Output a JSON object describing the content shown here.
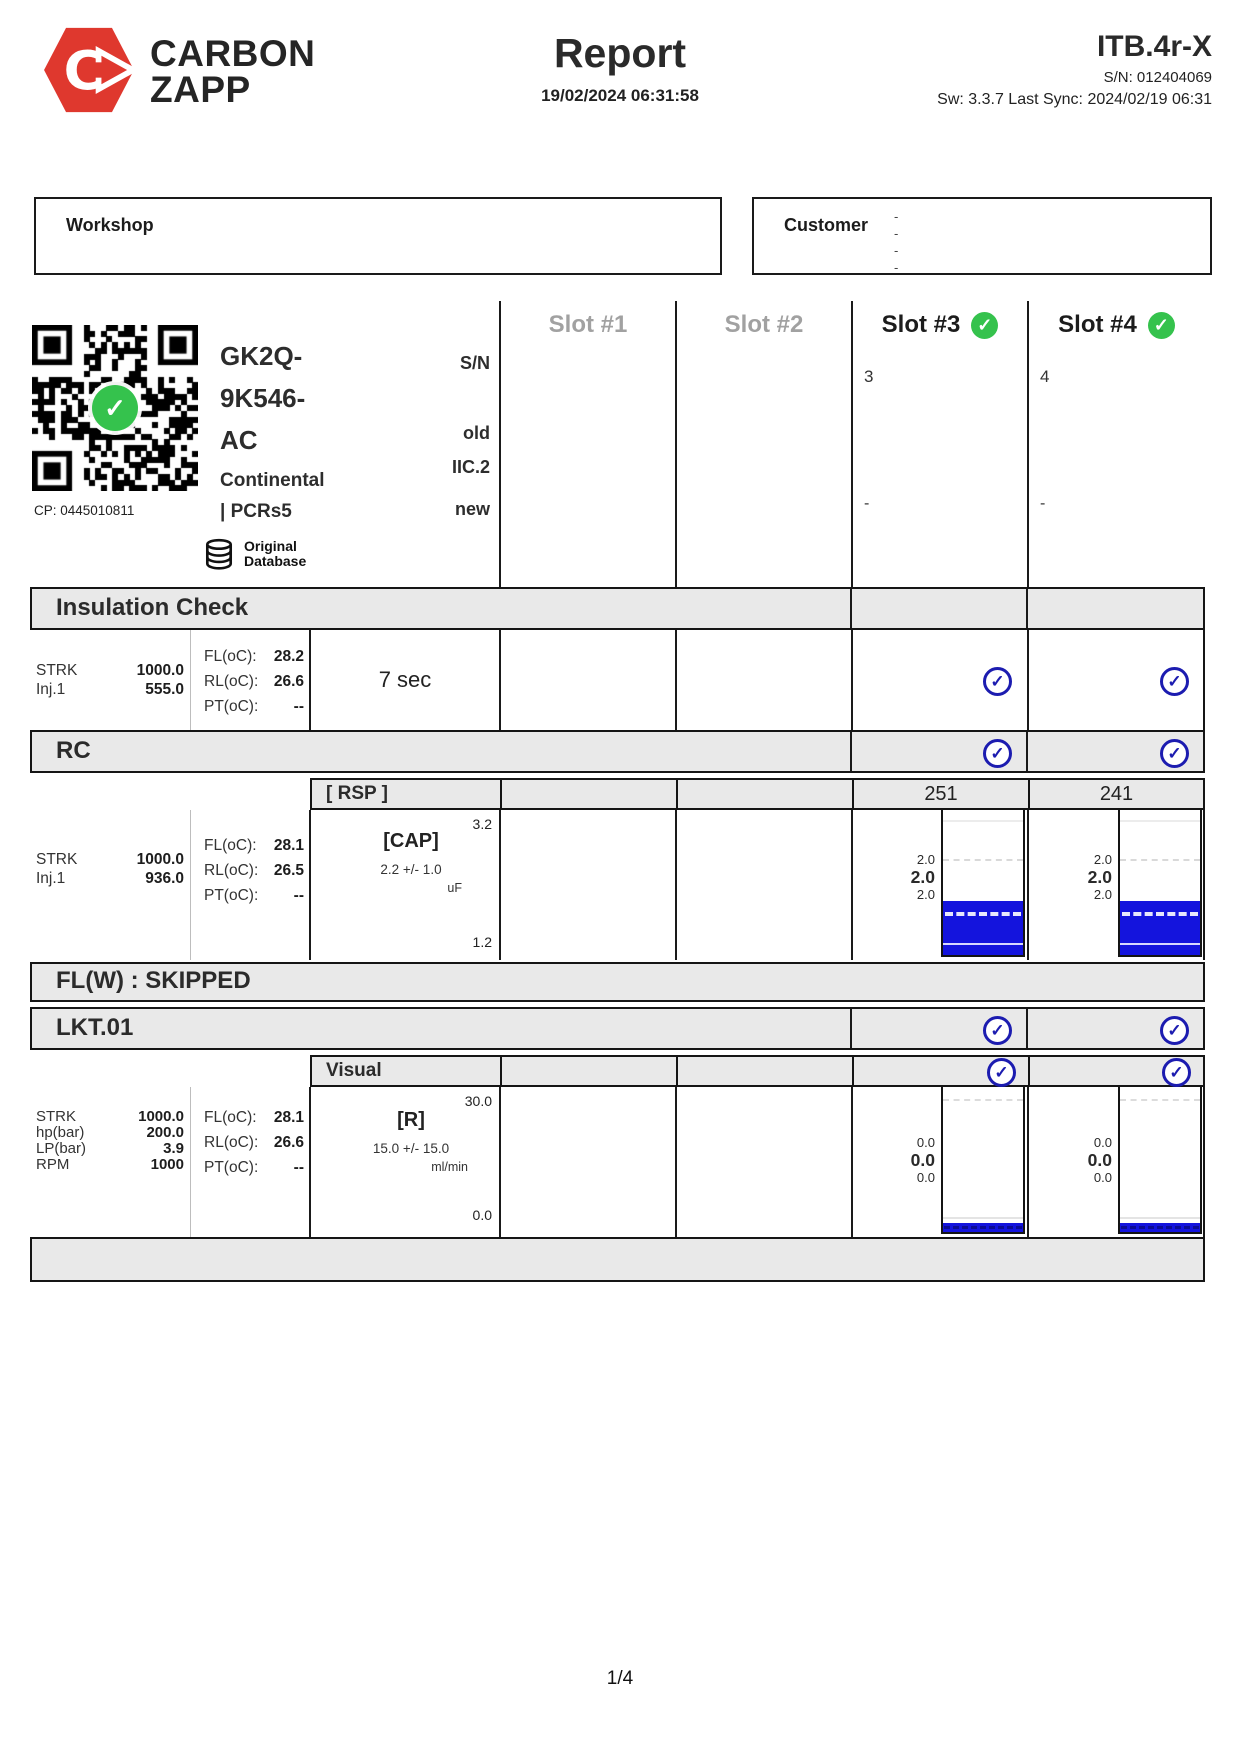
{
  "header": {
    "brand_top": "CARBON",
    "brand_bottom": "ZAPP",
    "title": "Report",
    "datetime": "19/02/2024 06:31:58",
    "device": "ITB.4r-X",
    "serial": "S/N: 012404069",
    "software": "Sw: 3.3.7 Last Sync: 2024/02/19 06:31"
  },
  "workshop": {
    "label": "Workshop"
  },
  "customer": {
    "label": "Customer",
    "dashes": [
      "-",
      "-",
      "-",
      "-"
    ]
  },
  "slots": {
    "s1_label": "Slot #1",
    "s2_label": "Slot #2",
    "s3_label": "Slot #3",
    "s4_label": "Slot #4",
    "s3_number": "3",
    "s4_number": "4",
    "s3_dash": "-",
    "s4_dash": "-"
  },
  "injector": {
    "qr_caption": "CP: 0445010811",
    "part_line1": "GK2Q-",
    "part_line2": "9K546-",
    "part_line3": "AC",
    "brand": "Continental",
    "series": "| PCRs5",
    "db_line1": "Original",
    "db_line2": "Database",
    "sn_label": "S/N",
    "old_label": "old",
    "old_value": "IIC.2",
    "new_label": "new"
  },
  "insulation": {
    "title": "Insulation Check",
    "strk_label": "STRK",
    "strk": "1000.0",
    "inj_label": "Inj.1",
    "inj": "555.0",
    "fl_label": "FL(oC):",
    "fl": "28.2",
    "rl_label": "RL(oC):",
    "rl": "26.6",
    "pt_label": "PT(oC):",
    "pt": "--",
    "duration": "7 sec"
  },
  "rc": {
    "title": "RC",
    "sub_label": "[ RSP ]",
    "rsp_s3": "251",
    "rsp_s4": "241",
    "strk_label": "STRK",
    "strk": "1000.0",
    "inj_label": "Inj.1",
    "inj": "936.0",
    "fl_label": "FL(oC):",
    "fl": "28.1",
    "rl_label": "RL(oC):",
    "rl": "26.5",
    "pt_label": "PT(oC):",
    "pt": "--",
    "test": "[CAP]",
    "tolerance": "2.2 +/- 1.0",
    "unit": "uF",
    "scale_max": "3.2",
    "scale_min": "1.2",
    "s3": {
      "max": "2.0",
      "avg": "2.0",
      "min": "2.0",
      "fill_pct": 37
    },
    "s4": {
      "max": "2.0",
      "avg": "2.0",
      "min": "2.0",
      "fill_pct": 37
    }
  },
  "flw": {
    "title": "FL(W) : SKIPPED"
  },
  "lkt": {
    "title": "LKT.01",
    "sub_label": "Visual",
    "strk_label": "STRK",
    "strk": "1000.0",
    "hp_label": "hp(bar)",
    "hp": "200.0",
    "lp_label": "LP(bar)",
    "lp": "3.9",
    "rpm_label": "RPM",
    "rpm": "1000",
    "fl_label": "FL(oC):",
    "fl": "28.1",
    "rl_label": "RL(oC):",
    "rl": "26.6",
    "pt_label": "PT(oC):",
    "pt": "--",
    "test": "[R]",
    "tolerance": "15.0 +/- 15.0",
    "unit": "ml/min",
    "scale_max": "30.0",
    "scale_min": "0.0",
    "s3": {
      "max": "0.0",
      "avg": "0.0",
      "min": "0.0",
      "fill_pct": 6
    },
    "s4": {
      "max": "0.0",
      "avg": "0.0",
      "min": "0.0",
      "fill_pct": 6
    }
  },
  "checks": {
    "glyph": "✓"
  },
  "footer": {
    "page": "1/4"
  },
  "colors": {
    "accent_red": "#df382e",
    "bar_blue": "#1414dd",
    "check_blue": "#1c1cb0",
    "check_green": "#35c24d",
    "inactive_gray": "#a1a1a1",
    "section_gray": "#e9e9e9"
  }
}
